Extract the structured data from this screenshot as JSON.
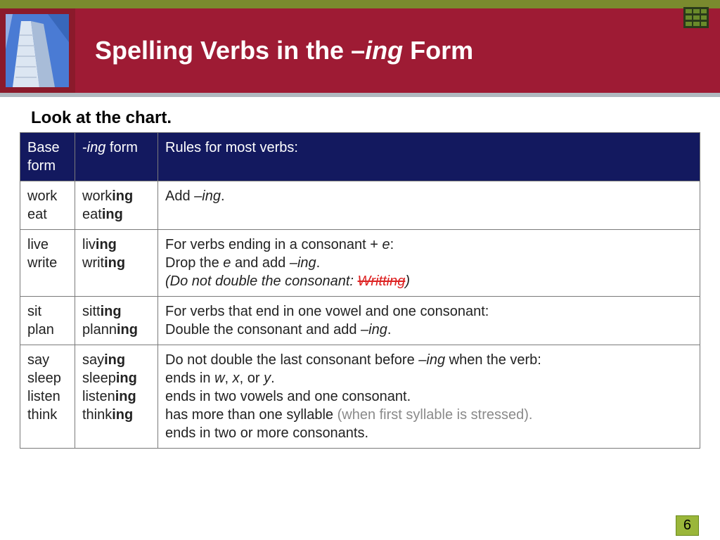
{
  "header": {
    "title_pre": "Spelling Verbs in the ",
    "title_dash": "–",
    "title_ital": "ing",
    "title_post": " Form"
  },
  "subtitle": "Look at the chart.",
  "table": {
    "headers": {
      "base": "Base form",
      "ing_pre": "-",
      "ing_ital": "ing",
      "ing_post": " form",
      "rules": "Rules for most verbs:"
    },
    "rows": [
      {
        "base": [
          "work",
          "eat"
        ],
        "ing": [
          [
            "work",
            "ing"
          ],
          [
            "eat",
            "ing"
          ]
        ],
        "rule_lines": [
          [
            {
              "t": "Add "
            },
            {
              "t": "–",
              "ital": true
            },
            {
              "t": "ing",
              "ital": true
            },
            {
              "t": "."
            }
          ]
        ]
      },
      {
        "base": [
          "live",
          "write"
        ],
        "ing": [
          [
            "liv",
            "ing"
          ],
          [
            "writ",
            "ing"
          ]
        ],
        "rule_lines": [
          [
            {
              "t": "For verbs ending in a consonant + "
            },
            {
              "t": "e",
              "ital": true
            },
            {
              "t": ":"
            }
          ],
          [
            {
              "t": "Drop the "
            },
            {
              "t": "e",
              "ital": true
            },
            {
              "t": " and add "
            },
            {
              "t": "–",
              "ital": true
            },
            {
              "t": "ing",
              "ital": true
            },
            {
              "t": "."
            }
          ],
          [
            {
              "t": "(",
              "ital": true
            },
            {
              "t": "Do not double the consonant: ",
              "ital": true
            },
            {
              "t": "Writting",
              "strike": true
            },
            {
              "t": ")",
              "ital": true
            }
          ]
        ]
      },
      {
        "base": [
          "sit",
          "plan"
        ],
        "ing": [
          [
            "sitt",
            "ing"
          ],
          [
            "plann",
            "ing"
          ]
        ],
        "rule_lines": [
          [
            {
              "t": "For verbs that end in one vowel and one consonant:"
            }
          ],
          [
            {
              "t": "Double the consonant and add "
            },
            {
              "t": "–",
              "ital": true
            },
            {
              "t": "ing",
              "ital": true
            },
            {
              "t": "."
            }
          ]
        ]
      },
      {
        "base": [
          "say",
          "sleep",
          "listen",
          "think"
        ],
        "ing": [
          [
            "say",
            "ing"
          ],
          [
            "sleep",
            "ing"
          ],
          [
            "listen",
            "ing"
          ],
          [
            "think",
            "ing"
          ]
        ],
        "rule_lines": [
          [
            {
              "t": "Do not double the last consonant before "
            },
            {
              "t": "–",
              "ital": true
            },
            {
              "t": "ing",
              "ital": true
            },
            {
              "t": " when the verb:"
            }
          ],
          [
            {
              "t": "ends in "
            },
            {
              "t": "w",
              "ital": true
            },
            {
              "t": ", "
            },
            {
              "t": "x",
              "ital": true
            },
            {
              "t": ", or "
            },
            {
              "t": "y",
              "ital": true
            },
            {
              "t": "."
            }
          ],
          [
            {
              "t": "ends in two vowels and one consonant."
            }
          ],
          [
            {
              "t": "has more than one syllable "
            },
            {
              "t": "(when first syllable is stressed).",
              "gray": true
            }
          ],
          [
            {
              "t": "ends in two or more consonants."
            }
          ]
        ]
      }
    ]
  },
  "page_number": "6",
  "colors": {
    "top_stripe": "#7a8a2e",
    "header_bg": "#9e1b34",
    "header_left_bg": "#8b1a2b",
    "under_stripe": "#b0b8bf",
    "thead_bg": "#13195f",
    "border": "#7a7a7a",
    "page_num_bg": "#9ab63a",
    "strike_red": "#d22"
  }
}
